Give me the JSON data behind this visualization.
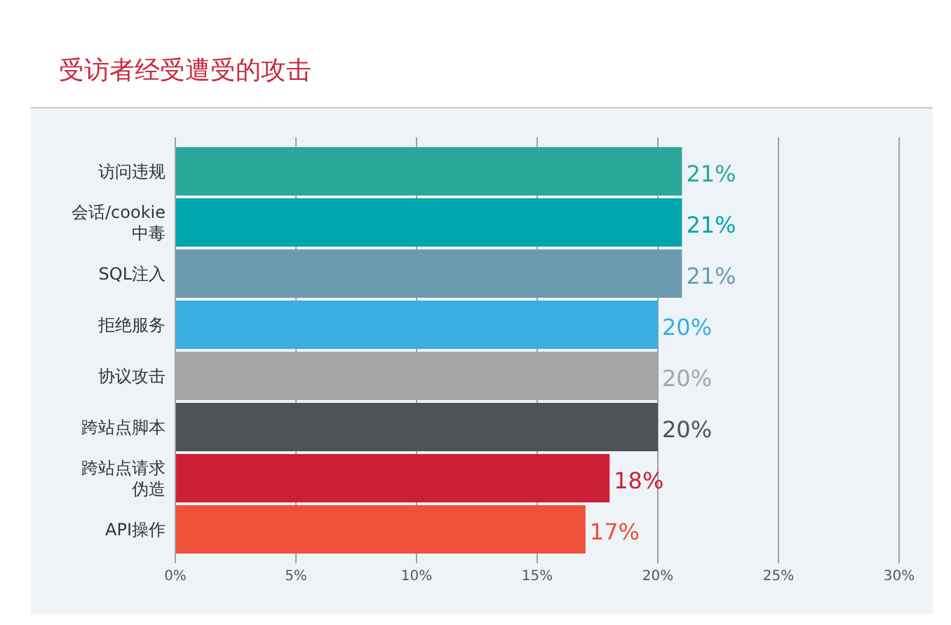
{
  "chart_data": {
    "type": "bar",
    "orientation": "horizontal",
    "title": "受访者经受遭受的攻击",
    "categories": [
      "访问违规",
      "会话/cookie中毒",
      "SQL注入",
      "拒绝服务",
      "协议攻击",
      "跨站点脚本",
      "跨站点请求伪造",
      "API操作"
    ],
    "values": [
      21,
      21,
      21,
      20,
      20,
      20,
      18,
      17
    ],
    "colors": [
      "#2aa89a",
      "#00a6ad",
      "#6c9bb0",
      "#3aaee0",
      "#a6a6a6",
      "#4f5358",
      "#cc1f36",
      "#ee5038"
    ],
    "value_labels": [
      "21%",
      "21%",
      "21%",
      "20%",
      "20%",
      "20%",
      "18%",
      "17%"
    ],
    "xlim": [
      0,
      30
    ],
    "xticks": [
      {
        "value": 0,
        "label": "0%"
      },
      {
        "value": 5,
        "label": "5%"
      },
      {
        "value": 10,
        "label": "10%"
      },
      {
        "value": 15,
        "label": "15%"
      },
      {
        "value": 20,
        "label": "20%"
      },
      {
        "value": 25,
        "label": "25%"
      },
      {
        "value": 30,
        "label": "30%"
      }
    ],
    "grid": "x"
  }
}
